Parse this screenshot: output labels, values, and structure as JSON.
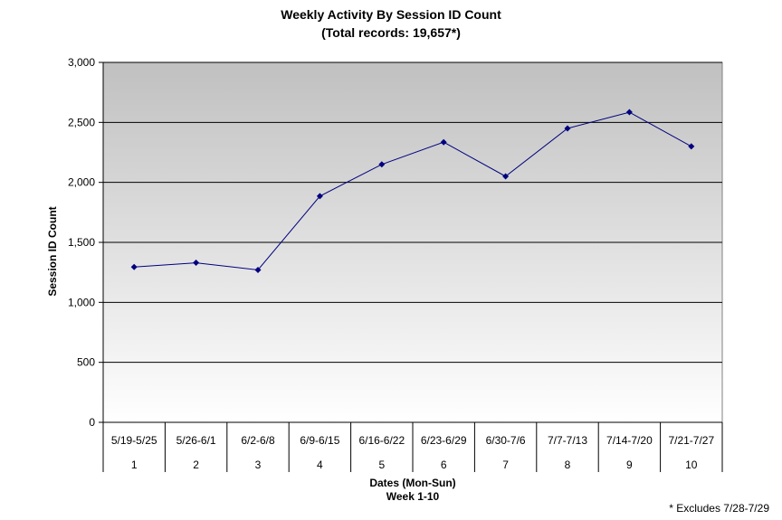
{
  "chart_data": {
    "type": "line",
    "title": "Weekly Activity By Session ID Count",
    "subtitle": "(Total records: 19,657*)",
    "ylabel": "Session ID Count",
    "xlabel": "Dates (Mon-Sun)",
    "xlabel2": "Week 1-10",
    "ylim": [
      0,
      3000
    ],
    "yticks": [
      "0",
      "500",
      "1,000",
      "1,500",
      "2,000",
      "2,500",
      "3,000"
    ],
    "ytick_values": [
      0,
      500,
      1000,
      1500,
      2000,
      2500,
      3000
    ],
    "grid": true,
    "categories": [
      "5/19-5/25",
      "5/26-6/1",
      "6/2-6/8",
      "6/9-6/15",
      "6/16-6/22",
      "6/23-6/29",
      "6/30-7/6",
      "7/7-7/13",
      "7/14-7/20",
      "7/21-7/27"
    ],
    "weeks": [
      "1",
      "2",
      "3",
      "4",
      "5",
      "6",
      "7",
      "8",
      "9",
      "10"
    ],
    "series": [
      {
        "values": [
          1295,
          1330,
          1270,
          1885,
          2150,
          2335,
          2050,
          2450,
          2585,
          2300
        ]
      }
    ],
    "footnote": "* Excludes 7/28-7/29",
    "colors": {
      "line": "#000080",
      "plot_top": "#c0c0c0",
      "plot_bottom": "#ffffff",
      "grid": "#000000"
    }
  }
}
